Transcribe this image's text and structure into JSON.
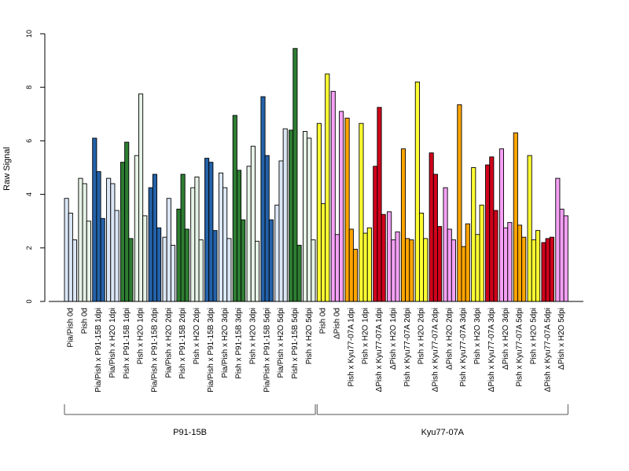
{
  "chart_data": {
    "type": "bar",
    "ylabel": "Raw Signal",
    "ylim": [
      0,
      10
    ],
    "yticks": [
      0,
      2,
      4,
      6,
      8,
      10
    ],
    "grid": false,
    "bars_per_group": 3,
    "categories": [
      "Pia/Pish 0d",
      "Pish 0d",
      "Pia/Pish x P91-15B 1dpi",
      "Pia/Pish x H2O 1dpi",
      "Pish x P91-15B 1dpi",
      "Pish x H2O 1dpi",
      "Pia/Pish x P91-15B 2dpi",
      "Pia/Pish x H2O 2dpi",
      "Pish x P91-15B 2dpi",
      "Pish x H2O 2dpi",
      "Pia/Pish x P91-15B 3dpi",
      "Pia/Pish x H2O 3dpi",
      "Pish x P91-15B 3dpi",
      "Pish x H2O 3dpi",
      "Pia/Pish x P91-15B 5dpi",
      "Pia/Pish x H2O 5dpi",
      "Pish x P91-15B 5dpi",
      "Pish x H2O 5dpi",
      "Pish 0d",
      "ΔPish 0d",
      "Pish x Kyu77-07A 1dpi",
      "Pish x H2O 1dpi",
      "ΔPish x Kyu77-07A 1dpi",
      "ΔPish x H2O 1dpi",
      "Pish x Kyu77-07A 2dpi",
      "Pish x H2O 2dpi",
      "ΔPish x Kyu77-07A 2dpi",
      "ΔPish x H2O 2dpi",
      "Pish x Kyu77-07A 3dpi",
      "Pish x H2O 3dpi",
      "ΔPish x Kyu77-07A 3dpi",
      "ΔPish x H2O 3dpi",
      "Pish x Kyu77-07A 5dpi",
      "Pish x H2O 5dpi",
      "ΔPish x Kyu77-07A 5dpi",
      "ΔPish x H2O 5dpi"
    ],
    "colors": [
      "#dbe7f6",
      "#e6f2e6",
      "#2462a8",
      "#dbe7f6",
      "#2e7d32",
      "#e6f2e6",
      "#2462a8",
      "#dbe7f6",
      "#2e7d32",
      "#e6f2e6",
      "#2462a8",
      "#dbe7f6",
      "#2e7d32",
      "#e6f2e6",
      "#2462a8",
      "#dbe7f6",
      "#2e7d32",
      "#e6f2e6",
      "#ffff33",
      "#f5a0f5",
      "#ffa500",
      "#ffff33",
      "#d0021b",
      "#f5a0f5",
      "#ffa500",
      "#ffff33",
      "#d0021b",
      "#f5a0f5",
      "#ffa500",
      "#ffff33",
      "#d0021b",
      "#f5a0f5",
      "#ffa500",
      "#ffff33",
      "#d0021b",
      "#f5a0f5"
    ],
    "values": [
      [
        3.85,
        3.3,
        2.3
      ],
      [
        4.6,
        4.4,
        3.0
      ],
      [
        6.1,
        4.85,
        3.1
      ],
      [
        4.6,
        4.4,
        3.4
      ],
      [
        5.2,
        5.95,
        2.35
      ],
      [
        5.45,
        7.75,
        3.2
      ],
      [
        4.25,
        4.75,
        2.75
      ],
      [
        2.4,
        3.85,
        2.1
      ],
      [
        3.45,
        4.75,
        2.7
      ],
      [
        4.25,
        4.65,
        2.3
      ],
      [
        5.35,
        5.2,
        2.65
      ],
      [
        4.8,
        4.25,
        2.35
      ],
      [
        6.95,
        4.9,
        3.05
      ],
      [
        5.05,
        5.8,
        2.25
      ],
      [
        7.65,
        5.45,
        3.05
      ],
      [
        3.6,
        5.25,
        6.45
      ],
      [
        6.4,
        9.45,
        2.1
      ],
      [
        6.35,
        6.1,
        2.3
      ],
      [
        6.65,
        3.65,
        8.5
      ],
      [
        7.85,
        2.5,
        7.1
      ],
      [
        6.85,
        2.7,
        1.95
      ],
      [
        6.65,
        2.55,
        2.75
      ],
      [
        5.05,
        7.25,
        3.25
      ],
      [
        3.35,
        2.3,
        2.6
      ],
      [
        5.7,
        2.35,
        2.3
      ],
      [
        8.2,
        3.3,
        2.35
      ],
      [
        5.55,
        4.75,
        2.8
      ],
      [
        4.25,
        2.7,
        2.3
      ],
      [
        7.35,
        2.05,
        2.9
      ],
      [
        5.0,
        2.5,
        3.6
      ],
      [
        5.1,
        5.4,
        3.4
      ],
      [
        5.7,
        2.75,
        2.95
      ],
      [
        6.3,
        2.85,
        2.4
      ],
      [
        5.45,
        2.3,
        2.65
      ],
      [
        2.2,
        2.35,
        2.4
      ],
      [
        4.6,
        3.45,
        3.2
      ]
    ],
    "groups": [
      {
        "label": "P91-15B",
        "from": 0,
        "to": 17
      },
      {
        "label": "Kyu77-07A",
        "from": 18,
        "to": 35
      }
    ]
  }
}
